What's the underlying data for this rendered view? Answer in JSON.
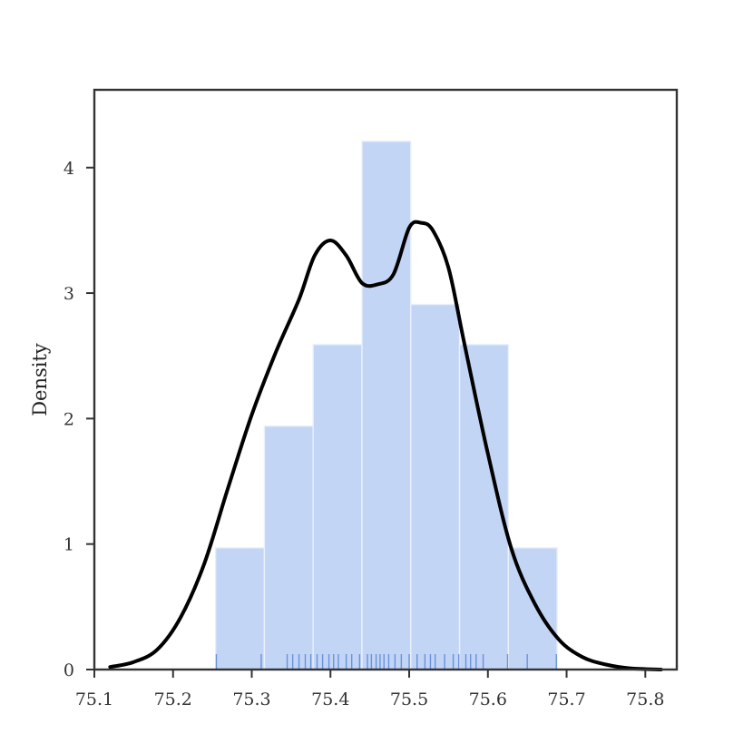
{
  "chart_data": {
    "type": "histogram",
    "xlabel": "",
    "ylabel": "Density",
    "xlim": [
      75.1,
      75.84
    ],
    "ylim": [
      0,
      4.62
    ],
    "x_ticks": [
      "75.1",
      "75.2",
      "75.3",
      "75.4",
      "75.5",
      "75.6",
      "75.7",
      "75.8"
    ],
    "y_ticks": [
      "0",
      "1",
      "2",
      "3",
      "4"
    ],
    "grid": false,
    "bins": [
      {
        "x0": 75.254,
        "x1": 75.316,
        "density": 0.97
      },
      {
        "x0": 75.316,
        "x1": 75.378,
        "density": 1.94
      },
      {
        "x0": 75.378,
        "x1": 75.44,
        "density": 2.59
      },
      {
        "x0": 75.44,
        "x1": 75.502,
        "density": 4.21
      },
      {
        "x0": 75.502,
        "x1": 75.564,
        "density": 2.91
      },
      {
        "x0": 75.564,
        "x1": 75.626,
        "density": 2.59
      },
      {
        "x0": 75.626,
        "x1": 75.688,
        "density": 0.97
      }
    ],
    "kde": {
      "x": [
        75.12,
        75.15,
        75.18,
        75.21,
        75.24,
        75.27,
        75.3,
        75.33,
        75.36,
        75.38,
        75.4,
        75.42,
        75.44,
        75.46,
        75.48,
        75.5,
        75.515,
        75.53,
        75.55,
        75.57,
        75.6,
        75.63,
        75.66,
        75.69,
        75.72,
        75.75,
        75.78,
        75.82
      ],
      "y": [
        0.02,
        0.06,
        0.16,
        0.42,
        0.85,
        1.45,
        2.03,
        2.52,
        2.95,
        3.3,
        3.42,
        3.3,
        3.08,
        3.07,
        3.15,
        3.52,
        3.56,
        3.5,
        3.2,
        2.6,
        1.72,
        0.96,
        0.52,
        0.24,
        0.1,
        0.04,
        0.01,
        0.0
      ]
    },
    "rug": [
      75.255,
      75.312,
      75.345,
      75.352,
      75.36,
      75.368,
      75.375,
      75.383,
      75.39,
      75.398,
      75.404,
      75.41,
      75.42,
      75.427,
      75.437,
      75.447,
      75.452,
      75.458,
      75.463,
      75.468,
      75.474,
      75.482,
      75.49,
      75.5,
      75.51,
      75.52,
      75.527,
      75.533,
      75.545,
      75.556,
      75.563,
      75.572,
      75.578,
      75.585,
      75.594,
      75.625,
      75.65,
      75.687
    ],
    "colors": {
      "bar_fill": "#c2d5f5",
      "bar_edge": "#e9f0fc",
      "rug": "#5b86d9",
      "kde": "#000000",
      "axes": "#333333"
    }
  }
}
